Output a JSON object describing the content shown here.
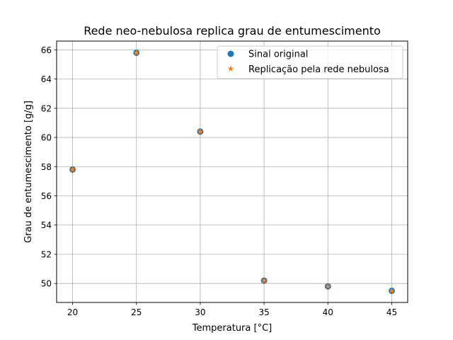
{
  "chart_data": {
    "type": "scatter",
    "title": "Rede neo-nebulosa replica grau de entumescimento",
    "xlabel": "Temperatura [°C]",
    "ylabel": "Grau de entumescimento [g/g]",
    "xlim": [
      18.75,
      46.25
    ],
    "ylim": [
      48.7,
      66.6
    ],
    "xticks": [
      20,
      25,
      30,
      35,
      40,
      45
    ],
    "yticks": [
      50,
      52,
      54,
      56,
      58,
      60,
      62,
      64,
      66
    ],
    "grid": true,
    "legend_position": "top-right",
    "series": [
      {
        "name": "Sinal original",
        "marker": "circle",
        "color": "#1f77b4",
        "x": [
          20,
          25,
          30,
          35,
          40,
          45
        ],
        "y": [
          57.8,
          65.8,
          60.4,
          50.2,
          49.8,
          49.5
        ]
      },
      {
        "name": "Replicação pela rede nebulosa",
        "marker": "star",
        "color": "#ff7f0e",
        "x": [
          20,
          25,
          30,
          35,
          40,
          45
        ],
        "y": [
          57.8,
          65.8,
          60.4,
          50.2,
          49.8,
          49.5
        ]
      }
    ]
  }
}
